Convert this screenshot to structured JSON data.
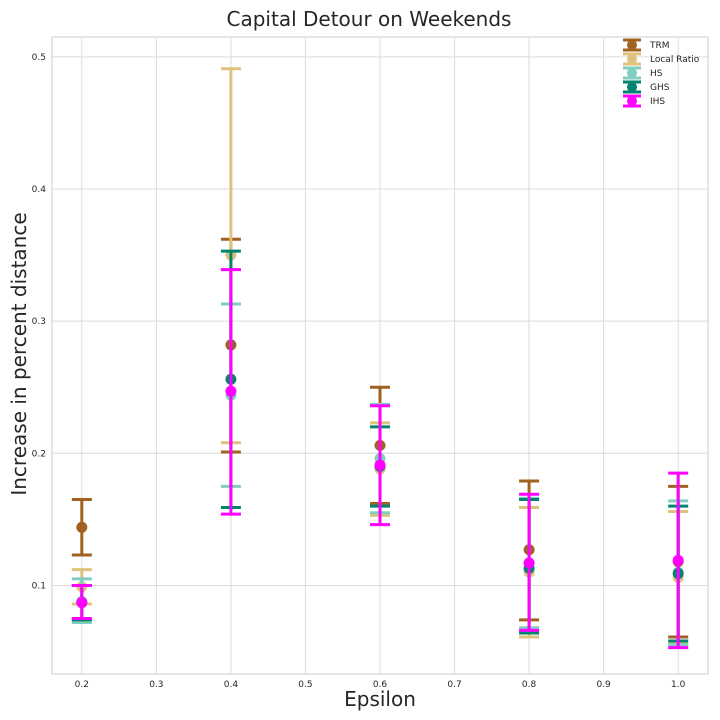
{
  "chart_data": {
    "type": "scatter",
    "title": "Capital Detour on Weekends",
    "xlabel": "Epsilon",
    "ylabel": "Increase in percent distance",
    "xlim": [
      0.16,
      1.04
    ],
    "ylim": [
      0.033,
      0.515
    ],
    "xticks": [
      "0.2",
      "0.3",
      "0.4",
      "0.5",
      "0.6",
      "0.7",
      "0.8",
      "0.9",
      "1.0"
    ],
    "yticks": [
      "0.1",
      "0.2",
      "0.3",
      "0.4",
      "0.5"
    ],
    "grid": true,
    "legend_position": "top-right",
    "series": [
      {
        "name": "TRM",
        "color": "#a0621e",
        "points": [
          {
            "x": 0.2,
            "y": 0.144,
            "low": 0.123,
            "high": 0.165
          },
          {
            "x": 0.4,
            "y": 0.282,
            "low": 0.201,
            "high": 0.362
          },
          {
            "x": 0.6,
            "y": 0.206,
            "low": 0.162,
            "high": 0.25
          },
          {
            "x": 0.8,
            "y": 0.127,
            "low": 0.074,
            "high": 0.179
          },
          {
            "x": 1.0,
            "y": 0.118,
            "low": 0.061,
            "high": 0.175
          }
        ]
      },
      {
        "name": "Local Ratio",
        "color": "#dfc27d",
        "points": [
          {
            "x": 0.2,
            "y": 0.099,
            "low": 0.086,
            "high": 0.112
          },
          {
            "x": 0.4,
            "y": 0.35,
            "low": 0.208,
            "high": 0.491
          },
          {
            "x": 0.6,
            "y": 0.188,
            "low": 0.153,
            "high": 0.223
          },
          {
            "x": 0.8,
            "y": 0.11,
            "low": 0.061,
            "high": 0.159
          },
          {
            "x": 1.0,
            "y": 0.106,
            "low": 0.056,
            "high": 0.156
          }
        ]
      },
      {
        "name": "HS",
        "color": "#80cdc1",
        "points": [
          {
            "x": 0.2,
            "y": 0.088,
            "low": 0.072,
            "high": 0.105
          },
          {
            "x": 0.4,
            "y": 0.244,
            "low": 0.175,
            "high": 0.313
          },
          {
            "x": 0.6,
            "y": 0.196,
            "low": 0.155,
            "high": 0.237
          },
          {
            "x": 0.8,
            "y": 0.117,
            "low": 0.068,
            "high": 0.166
          },
          {
            "x": 1.0,
            "y": 0.11,
            "low": 0.055,
            "high": 0.164
          }
        ]
      },
      {
        "name": "GHS",
        "color": "#018571",
        "points": [
          {
            "x": 0.2,
            "y": 0.087,
            "low": 0.074,
            "high": 0.1
          },
          {
            "x": 0.4,
            "y": 0.256,
            "low": 0.159,
            "high": 0.353
          },
          {
            "x": 0.6,
            "y": 0.19,
            "low": 0.16,
            "high": 0.22
          },
          {
            "x": 0.8,
            "y": 0.113,
            "low": 0.064,
            "high": 0.165
          },
          {
            "x": 1.0,
            "y": 0.109,
            "low": 0.058,
            "high": 0.16
          }
        ]
      },
      {
        "name": "IHS",
        "color": "#ff00ff",
        "points": [
          {
            "x": 0.2,
            "y": 0.087,
            "low": 0.075,
            "high": 0.1
          },
          {
            "x": 0.4,
            "y": 0.247,
            "low": 0.154,
            "high": 0.339
          },
          {
            "x": 0.6,
            "y": 0.191,
            "low": 0.146,
            "high": 0.236
          },
          {
            "x": 0.8,
            "y": 0.117,
            "low": 0.066,
            "high": 0.169
          },
          {
            "x": 1.0,
            "y": 0.119,
            "low": 0.053,
            "high": 0.185
          }
        ]
      }
    ]
  }
}
